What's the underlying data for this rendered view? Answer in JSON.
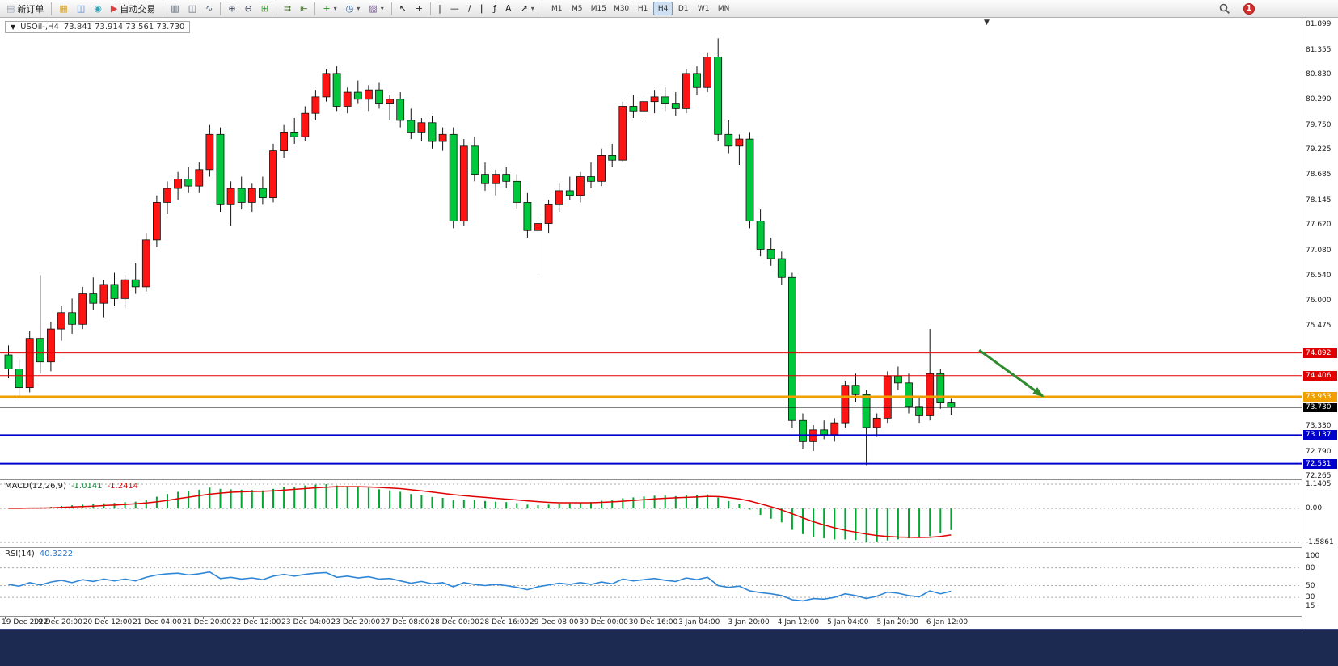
{
  "icons": {
    "collapse": "▼",
    "caret": "▾",
    "shift_marker": "▼"
  },
  "colors": {
    "up": "#ff1414",
    "down": "#00c83c",
    "wick": "#111111",
    "macd_hist": "#00a832",
    "macd_signal": "#e00000",
    "rsi_line": "#2f86d6",
    "arrow": "#2d8a2d",
    "grid_dash": "#aaaaaa"
  },
  "toolbar": {
    "items": [
      {
        "type": "button",
        "name": "new-order-button",
        "icon": "new-order-icon",
        "glyph": "▤",
        "color": "#9aa4b0",
        "label": "新订单"
      },
      {
        "type": "sep"
      },
      {
        "type": "button",
        "name": "charts-profile-button",
        "icon": "folder-icon",
        "glyph": "▦",
        "color": "#d9a11e"
      },
      {
        "type": "button",
        "name": "market-watch-button",
        "icon": "market-watch-icon",
        "glyph": "◫",
        "color": "#4a7ad4"
      },
      {
        "type": "button",
        "name": "community-button",
        "icon": "community-icon",
        "glyph": "◉",
        "color": "#2fa3b8"
      },
      {
        "type": "button",
        "name": "autotrading-button",
        "icon": "autotrading-icon",
        "glyph": "▶",
        "color": "#d84040",
        "label": "自动交易"
      },
      {
        "type": "sep"
      },
      {
        "type": "button",
        "name": "bar-chart-button",
        "icon": "bar-chart-icon",
        "glyph": "▥",
        "color": "#556070"
      },
      {
        "type": "button",
        "name": "candlestick-chart-button",
        "icon": "candlestick-icon",
        "glyph": "◫",
        "color": "#556070"
      },
      {
        "type": "button",
        "name": "line-chart-button",
        "icon": "line-chart-icon",
        "glyph": "∿",
        "color": "#556070"
      },
      {
        "type": "sep"
      },
      {
        "type": "button",
        "name": "zoom-in-button",
        "icon": "zoom-in-icon",
        "glyph": "⊕",
        "color": "#404a58"
      },
      {
        "type": "button",
        "name": "zoom-out-button",
        "icon": "zoom-out-icon",
        "glyph": "⊖",
        "color": "#404a58"
      },
      {
        "type": "button",
        "name": "tile-windows-button",
        "icon": "tile-windows-icon",
        "glyph": "⊞",
        "color": "#3a9e3a"
      },
      {
        "type": "sep"
      },
      {
        "type": "button",
        "name": "auto-scroll-button",
        "icon": "auto-scroll-icon",
        "glyph": "⇉",
        "color": "#446a2a"
      },
      {
        "type": "button",
        "name": "chart-shift-button",
        "icon": "chart-shift-icon",
        "glyph": "⇤",
        "color": "#446a2a"
      },
      {
        "type": "sep"
      },
      {
        "type": "button",
        "name": "indicators-button",
        "icon": "indicators-plus-icon",
        "glyph": "+",
        "color": "#1f8f1f",
        "caret": true
      },
      {
        "type": "button",
        "name": "periods-button",
        "icon": "clock-icon",
        "glyph": "◷",
        "color": "#2a5a9a",
        "caret": true
      },
      {
        "type": "button",
        "name": "templates-button",
        "icon": "template-icon",
        "glyph": "▨",
        "color": "#7a5a9a",
        "caret": true
      },
      {
        "type": "sep"
      },
      {
        "type": "button",
        "name": "cursor-button",
        "icon": "cursor-icon",
        "glyph": "↖",
        "color": "#222222"
      },
      {
        "type": "button",
        "name": "crosshair-button",
        "icon": "crosshair-icon",
        "glyph": "+",
        "color": "#222222"
      },
      {
        "type": "sep"
      },
      {
        "type": "button",
        "name": "vertical-line-button",
        "icon": "vertical-line-icon",
        "glyph": "|",
        "color": "#222222"
      },
      {
        "type": "button",
        "name": "horizontal-line-button",
        "icon": "horizontal-line-icon",
        "glyph": "—",
        "color": "#222222"
      },
      {
        "type": "button",
        "name": "trendline-button",
        "icon": "trendline-icon",
        "glyph": "/",
        "color": "#222222"
      },
      {
        "type": "button",
        "name": "channel-button",
        "icon": "channel-icon",
        "glyph": "∥",
        "color": "#222222"
      },
      {
        "type": "button",
        "name": "fibonacci-button",
        "icon": "fibonacci-icon",
        "glyph": "ƒ",
        "color": "#222222"
      },
      {
        "type": "button",
        "name": "text-button",
        "icon": "text-icon",
        "glyph": "A",
        "color": "#222222"
      },
      {
        "type": "button",
        "name": "arrows-button",
        "icon": "arrow-tool-icon",
        "glyph": "↗",
        "color": "#222222",
        "caret": true
      },
      {
        "type": "sep"
      }
    ],
    "timeframes": [
      "M1",
      "M5",
      "M15",
      "M30",
      "H1",
      "H4",
      "D1",
      "W1",
      "MN"
    ],
    "active_timeframe": "H4",
    "notification_badge": "1"
  },
  "chart_data": {
    "type": "candlestick",
    "symbol_title": "USOil-,H4",
    "quote_string": "73.841 73.914 73.561 73.730",
    "color_convention": "red = bullish, green = bearish",
    "price_axis": {
      "max": 81.899,
      "min": 72.265,
      "labels": [
        81.899,
        81.355,
        80.83,
        80.29,
        79.75,
        79.225,
        78.685,
        78.145,
        77.62,
        77.08,
        76.54,
        76.0,
        75.475,
        73.33,
        72.79,
        72.265
      ]
    },
    "level_lines": [
      {
        "price": 74.892,
        "label": "74.892",
        "color": "#e00000",
        "width": 1
      },
      {
        "price": 74.406,
        "label": "74.406",
        "color": "#e00000",
        "width": 1
      },
      {
        "price": 73.953,
        "label": "73.953",
        "color": "#f0a000",
        "width": 3
      },
      {
        "price": 73.73,
        "label": "73.730",
        "color": "#000000",
        "width": 1
      },
      {
        "price": 73.137,
        "label": "73.137",
        "color": "#0000cc",
        "width": 2
      },
      {
        "price": 72.531,
        "label": "72.531",
        "color": "#0000cc",
        "width": 2
      }
    ],
    "candles": [
      [
        74.85,
        75.05,
        74.35,
        74.55
      ],
      [
        74.55,
        74.75,
        73.95,
        74.15
      ],
      [
        74.15,
        75.35,
        74.05,
        75.2
      ],
      [
        75.2,
        76.55,
        74.45,
        74.7
      ],
      [
        74.7,
        75.55,
        74.5,
        75.4
      ],
      [
        75.4,
        75.9,
        75.15,
        75.75
      ],
      [
        75.75,
        76.05,
        75.3,
        75.5
      ],
      [
        75.5,
        76.3,
        75.4,
        76.15
      ],
      [
        76.15,
        76.5,
        75.8,
        75.95
      ],
      [
        75.95,
        76.45,
        75.65,
        76.35
      ],
      [
        76.35,
        76.6,
        75.9,
        76.05
      ],
      [
        76.05,
        76.55,
        75.85,
        76.45
      ],
      [
        76.45,
        76.8,
        76.15,
        76.3
      ],
      [
        76.3,
        77.45,
        76.2,
        77.3
      ],
      [
        77.3,
        78.25,
        77.15,
        78.1
      ],
      [
        78.1,
        78.55,
        77.85,
        78.4
      ],
      [
        78.4,
        78.75,
        78.15,
        78.6
      ],
      [
        78.6,
        78.85,
        78.3,
        78.45
      ],
      [
        78.45,
        78.95,
        78.3,
        78.8
      ],
      [
        78.8,
        79.75,
        78.65,
        79.55
      ],
      [
        79.55,
        79.7,
        77.9,
        78.05
      ],
      [
        78.05,
        78.55,
        77.6,
        78.4
      ],
      [
        78.4,
        78.65,
        77.95,
        78.1
      ],
      [
        78.1,
        78.5,
        77.9,
        78.4
      ],
      [
        78.4,
        78.65,
        78.05,
        78.2
      ],
      [
        78.2,
        79.35,
        78.1,
        79.2
      ],
      [
        79.2,
        79.75,
        79.05,
        79.6
      ],
      [
        79.6,
        79.9,
        79.35,
        79.5
      ],
      [
        79.5,
        80.15,
        79.4,
        80.0
      ],
      [
        80.0,
        80.5,
        79.85,
        80.35
      ],
      [
        80.35,
        80.95,
        80.25,
        80.85
      ],
      [
        80.85,
        81.0,
        80.05,
        80.15
      ],
      [
        80.15,
        80.55,
        80.0,
        80.45
      ],
      [
        80.45,
        80.7,
        80.2,
        80.3
      ],
      [
        80.3,
        80.6,
        80.05,
        80.5
      ],
      [
        80.5,
        80.65,
        80.1,
        80.2
      ],
      [
        80.2,
        80.4,
        79.85,
        80.3
      ],
      [
        80.3,
        80.45,
        79.7,
        79.85
      ],
      [
        79.85,
        80.1,
        79.45,
        79.6
      ],
      [
        79.6,
        79.9,
        79.4,
        79.8
      ],
      [
        79.8,
        79.95,
        79.25,
        79.4
      ],
      [
        79.4,
        79.7,
        79.2,
        79.55
      ],
      [
        79.55,
        79.7,
        77.55,
        77.7
      ],
      [
        77.7,
        79.45,
        77.6,
        79.3
      ],
      [
        79.3,
        79.5,
        78.55,
        78.7
      ],
      [
        78.7,
        78.95,
        78.35,
        78.5
      ],
      [
        78.5,
        78.8,
        78.25,
        78.7
      ],
      [
        78.7,
        78.85,
        78.4,
        78.55
      ],
      [
        78.55,
        78.7,
        77.95,
        78.1
      ],
      [
        78.1,
        78.3,
        77.35,
        77.5
      ],
      [
        77.5,
        77.75,
        76.55,
        77.65
      ],
      [
        77.65,
        78.15,
        77.45,
        78.05
      ],
      [
        78.05,
        78.5,
        77.9,
        78.35
      ],
      [
        78.35,
        78.65,
        78.15,
        78.25
      ],
      [
        78.25,
        78.75,
        78.1,
        78.65
      ],
      [
        78.65,
        78.95,
        78.4,
        78.55
      ],
      [
        78.55,
        79.25,
        78.45,
        79.1
      ],
      [
        79.1,
        79.35,
        78.85,
        79.0
      ],
      [
        79.0,
        80.25,
        78.95,
        80.15
      ],
      [
        80.15,
        80.4,
        79.9,
        80.05
      ],
      [
        80.05,
        80.35,
        79.85,
        80.25
      ],
      [
        80.25,
        80.5,
        80.0,
        80.35
      ],
      [
        80.35,
        80.55,
        80.05,
        80.2
      ],
      [
        80.2,
        80.45,
        79.95,
        80.1
      ],
      [
        80.1,
        80.95,
        80.0,
        80.85
      ],
      [
        80.85,
        81.0,
        80.4,
        80.55
      ],
      [
        80.55,
        81.3,
        80.45,
        81.2
      ],
      [
        81.2,
        81.6,
        79.4,
        79.55
      ],
      [
        79.55,
        79.85,
        79.15,
        79.3
      ],
      [
        79.3,
        79.55,
        78.9,
        79.45
      ],
      [
        79.45,
        79.6,
        77.55,
        77.7
      ],
      [
        77.7,
        77.95,
        76.95,
        77.1
      ],
      [
        77.1,
        77.35,
        76.75,
        76.9
      ],
      [
        76.9,
        77.05,
        76.35,
        76.5
      ],
      [
        76.5,
        76.6,
        73.3,
        73.45
      ],
      [
        73.45,
        73.6,
        72.85,
        73.0
      ],
      [
        73.0,
        73.35,
        72.8,
        73.25
      ],
      [
        73.25,
        73.45,
        73.05,
        73.15
      ],
      [
        73.15,
        73.5,
        73.0,
        73.4
      ],
      [
        73.4,
        74.3,
        73.3,
        74.2
      ],
      [
        74.2,
        74.45,
        73.85,
        74.0
      ],
      [
        74.0,
        74.1,
        72.5,
        73.3
      ],
      [
        73.3,
        73.6,
        73.1,
        73.5
      ],
      [
        73.5,
        74.5,
        73.4,
        74.4
      ],
      [
        74.4,
        74.6,
        74.1,
        74.25
      ],
      [
        74.25,
        74.45,
        73.6,
        73.75
      ],
      [
        73.75,
        73.95,
        73.4,
        73.55
      ],
      [
        73.55,
        75.4,
        73.45,
        74.45
      ],
      [
        74.45,
        74.55,
        73.7,
        73.84
      ],
      [
        73.841,
        73.914,
        73.561,
        73.73
      ]
    ],
    "time_labels": [
      "19 Dec 2022",
      "19 Dec 20:00",
      "20 Dec 12:00",
      "21 Dec 04:00",
      "21 Dec 20:00",
      "22 Dec 12:00",
      "23 Dec 04:00",
      "23 Dec 20:00",
      "27 Dec 08:00",
      "28 Dec 00:00",
      "28 Dec 16:00",
      "29 Dec 08:00",
      "30 Dec 00:00",
      "30 Dec 16:00",
      "3 Jan 04:00",
      "3 Jan 20:00",
      "4 Jan 12:00",
      "5 Jan 04:00",
      "5 Jan 20:00",
      "6 Jan 12:00"
    ],
    "arrow_annotation": {
      "from_bar": 92,
      "from_price": 74.95,
      "to_bar": 98,
      "to_price": 73.97,
      "color": "#2d8a2d"
    },
    "macd": {
      "header": "MACD(12,26,9)",
      "value_main": "-1.0141",
      "value_signal": "-1.2414",
      "axis_labels": [
        "1.1405",
        "0.00",
        "-1.5861"
      ],
      "axis_values": [
        1.1405,
        0,
        -1.5861
      ],
      "histogram": [
        0.02,
        0.0,
        0.03,
        0.05,
        0.08,
        0.12,
        0.15,
        0.18,
        0.2,
        0.24,
        0.26,
        0.3,
        0.32,
        0.42,
        0.55,
        0.68,
        0.78,
        0.82,
        0.88,
        0.98,
        0.92,
        0.9,
        0.88,
        0.87,
        0.85,
        0.92,
        1.0,
        1.02,
        1.08,
        1.12,
        1.14,
        1.08,
        1.05,
        1.0,
        0.97,
        0.9,
        0.85,
        0.78,
        0.68,
        0.62,
        0.54,
        0.5,
        0.38,
        0.42,
        0.4,
        0.35,
        0.32,
        0.3,
        0.25,
        0.18,
        0.15,
        0.18,
        0.22,
        0.24,
        0.28,
        0.3,
        0.36,
        0.38,
        0.48,
        0.52,
        0.56,
        0.6,
        0.6,
        0.58,
        0.62,
        0.62,
        0.66,
        0.52,
        0.35,
        0.22,
        -0.05,
        -0.3,
        -0.48,
        -0.65,
        -1.0,
        -1.2,
        -1.32,
        -1.4,
        -1.45,
        -1.45,
        -1.48,
        -1.58,
        -1.55,
        -1.5,
        -1.45,
        -1.4,
        -1.38,
        -1.3,
        -1.15,
        -1.01
      ],
      "signal": [
        0.01,
        0.01,
        0.02,
        0.02,
        0.03,
        0.05,
        0.07,
        0.09,
        0.11,
        0.14,
        0.16,
        0.19,
        0.22,
        0.26,
        0.31,
        0.38,
        0.46,
        0.53,
        0.6,
        0.67,
        0.72,
        0.76,
        0.78,
        0.8,
        0.81,
        0.83,
        0.86,
        0.9,
        0.93,
        0.97,
        1.0,
        1.02,
        1.02,
        1.02,
        1.01,
        0.99,
        0.96,
        0.93,
        0.88,
        0.83,
        0.77,
        0.71,
        0.65,
        0.6,
        0.56,
        0.52,
        0.48,
        0.44,
        0.4,
        0.36,
        0.32,
        0.29,
        0.27,
        0.27,
        0.27,
        0.27,
        0.29,
        0.31,
        0.34,
        0.38,
        0.41,
        0.45,
        0.48,
        0.5,
        0.52,
        0.54,
        0.57,
        0.56,
        0.51,
        0.45,
        0.35,
        0.22,
        0.08,
        -0.07,
        -0.25,
        -0.44,
        -0.62,
        -0.77,
        -0.91,
        -1.02,
        -1.11,
        -1.2,
        -1.27,
        -1.31,
        -1.34,
        -1.35,
        -1.36,
        -1.35,
        -1.31,
        -1.24
      ]
    },
    "rsi": {
      "header": "RSI(14)",
      "value": "40.3222",
      "axis_labels": [
        "100",
        "80",
        "50",
        "30",
        "15"
      ],
      "axis_values": [
        100,
        80,
        50,
        30,
        15
      ],
      "levels_dashed": [
        80,
        50,
        30
      ],
      "values": [
        52,
        49,
        55,
        51,
        56,
        59,
        55,
        60,
        57,
        61,
        58,
        61,
        58,
        64,
        68,
        70,
        71,
        68,
        70,
        73,
        62,
        64,
        61,
        63,
        60,
        66,
        69,
        66,
        69,
        71,
        72,
        64,
        66,
        63,
        65,
        61,
        62,
        58,
        54,
        57,
        53,
        55,
        48,
        55,
        52,
        50,
        52,
        50,
        47,
        43,
        48,
        51,
        54,
        52,
        55,
        52,
        56,
        53,
        61,
        58,
        60,
        62,
        59,
        57,
        63,
        60,
        64,
        50,
        47,
        49,
        41,
        38,
        36,
        33,
        26,
        24,
        28,
        27,
        30,
        36,
        33,
        28,
        32,
        39,
        37,
        33,
        31,
        41,
        36,
        40.3
      ]
    }
  }
}
